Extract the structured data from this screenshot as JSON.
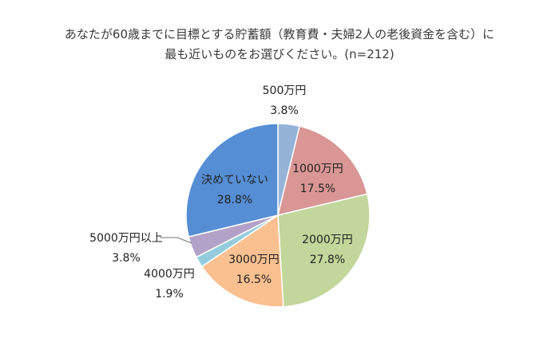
{
  "chart_data": {
    "type": "pie",
    "title_lines": [
      "あなたが60歳までに目標とする貯蓄額（教育費・夫婦2人の老後資金を含む）に",
      "最も近いものをお選びください。(n=212)"
    ],
    "unit": "%",
    "slices": [
      {
        "label": "500万円",
        "value": 3.8,
        "value_text": "3.8%",
        "color": "#95b3d7"
      },
      {
        "label": "1000万円",
        "value": 17.5,
        "value_text": "17.5%",
        "color": "#d99694"
      },
      {
        "label": "2000万円",
        "value": 27.8,
        "value_text": "27.8%",
        "color": "#c3d69b"
      },
      {
        "label": "3000万円",
        "value": 16.5,
        "value_text": "16.5%",
        "color": "#fac090"
      },
      {
        "label": "4000万円",
        "value": 1.9,
        "value_text": "1.9%",
        "color": "#93cddd"
      },
      {
        "label": "5000万円以上",
        "value": 3.8,
        "value_text": "3.8%",
        "color": "#b3a2c7"
      },
      {
        "label": "決めていない",
        "value": 28.8,
        "value_text": "28.8%",
        "color": "#558ed5"
      }
    ],
    "legend": "none"
  }
}
